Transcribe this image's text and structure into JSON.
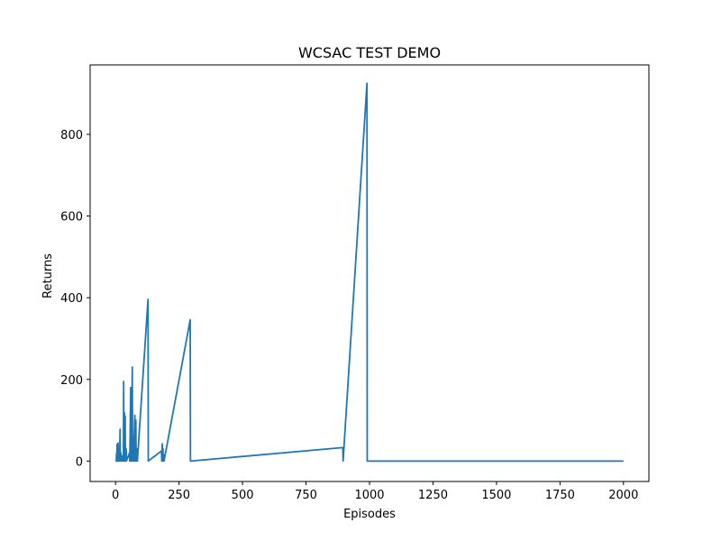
{
  "chart_data": {
    "type": "line",
    "title": "WCSAC TEST DEMO",
    "xlabel": "Episodes",
    "ylabel": "Returns",
    "xlim": [
      -100,
      2100
    ],
    "ylim": [
      -50,
      970
    ],
    "x_ticks": [
      0,
      250,
      500,
      750,
      1000,
      1250,
      1500,
      1750,
      2000
    ],
    "y_ticks": [
      0,
      200,
      400,
      600,
      800
    ],
    "grid": false,
    "legend": "none",
    "series_color": "#1f77b4",
    "series": [
      {
        "points": [
          [
            0,
            0
          ],
          [
            3,
            0
          ],
          [
            4,
            18
          ],
          [
            5,
            0
          ],
          [
            6,
            40
          ],
          [
            7,
            0
          ],
          [
            8,
            42
          ],
          [
            9,
            0
          ],
          [
            10,
            44
          ],
          [
            11,
            0
          ],
          [
            12,
            10
          ],
          [
            13,
            0
          ],
          [
            15,
            25
          ],
          [
            16,
            0
          ],
          [
            18,
            78
          ],
          [
            19,
            0
          ],
          [
            21,
            20
          ],
          [
            22,
            0
          ],
          [
            25,
            12
          ],
          [
            26,
            0
          ],
          [
            30,
            15
          ],
          [
            31,
            0
          ],
          [
            32,
            195
          ],
          [
            33,
            0
          ],
          [
            35,
            118
          ],
          [
            36,
            0
          ],
          [
            38,
            110
          ],
          [
            39,
            0
          ],
          [
            42,
            30
          ],
          [
            43,
            0
          ],
          [
            55,
            20
          ],
          [
            56,
            0
          ],
          [
            60,
            180
          ],
          [
            61,
            0
          ],
          [
            63,
            160
          ],
          [
            64,
            0
          ],
          [
            66,
            230
          ],
          [
            67,
            0
          ],
          [
            70,
            60
          ],
          [
            71,
            0
          ],
          [
            76,
            112
          ],
          [
            77,
            0
          ],
          [
            80,
            100
          ],
          [
            81,
            0
          ],
          [
            85,
            30
          ],
          [
            86,
            0
          ],
          [
            128,
            396
          ],
          [
            129,
            0
          ],
          [
            181,
            25
          ],
          [
            182,
            0
          ],
          [
            184,
            42
          ],
          [
            185,
            0
          ],
          [
            187,
            30
          ],
          [
            188,
            0
          ],
          [
            190,
            15
          ],
          [
            191,
            0
          ],
          [
            294,
            346
          ],
          [
            295,
            0
          ],
          [
            895,
            33
          ],
          [
            896,
            0
          ],
          [
            990,
            925
          ],
          [
            991,
            0
          ],
          [
            2000,
            0
          ]
        ]
      }
    ]
  }
}
